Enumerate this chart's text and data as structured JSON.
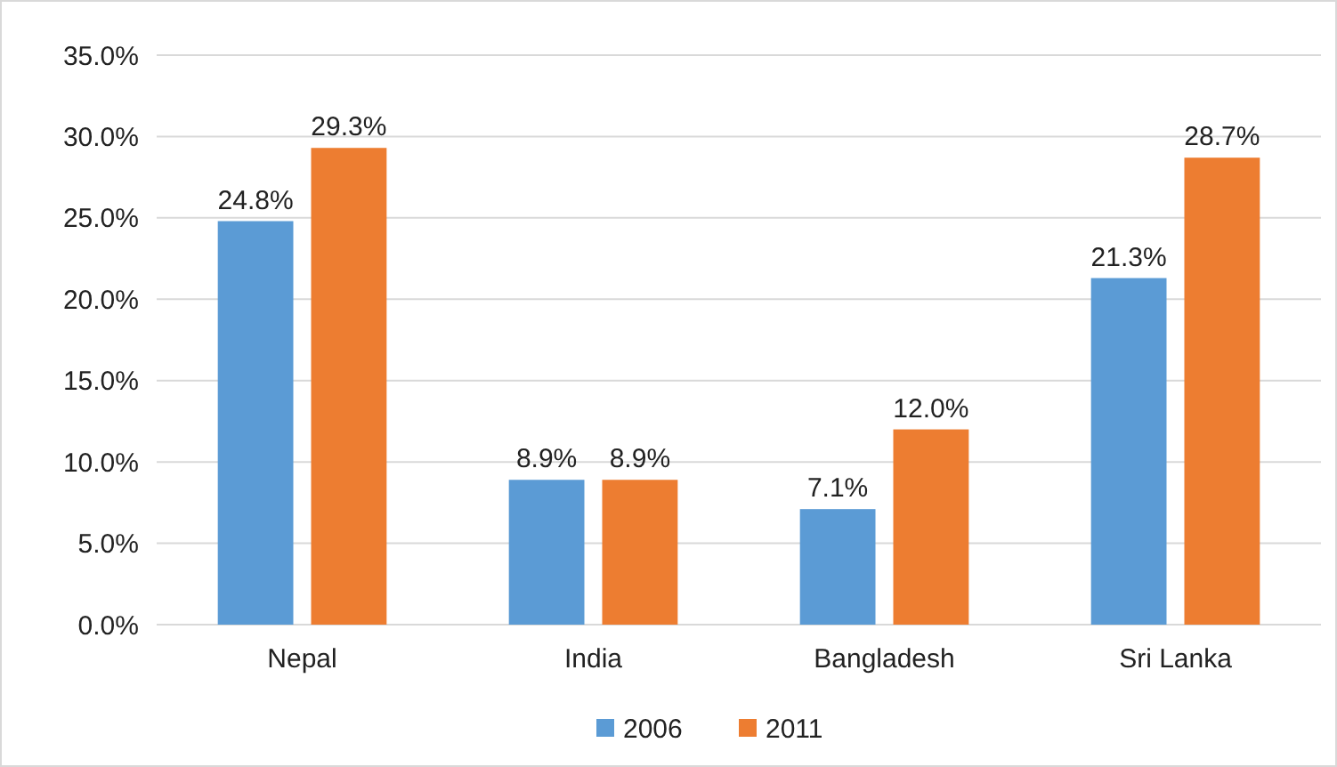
{
  "chart_data": {
    "type": "bar",
    "categories": [
      "Nepal",
      "India",
      "Bangladesh",
      "Sri Lanka"
    ],
    "series": [
      {
        "name": "2006",
        "color": "#5b9bd5",
        "values": [
          24.8,
          8.9,
          7.1,
          21.3
        ],
        "value_labels": [
          "24.8%",
          "8.9%",
          "7.1%",
          "21.3%"
        ]
      },
      {
        "name": "2011",
        "color": "#ed7d31",
        "values": [
          29.3,
          8.9,
          12.0,
          28.7
        ],
        "value_labels": [
          "29.3%",
          "8.9%",
          "12.0%",
          "28.7%"
        ]
      }
    ],
    "ylim": [
      0,
      35
    ],
    "yticks": [
      {
        "value": 0,
        "label": "0.0%"
      },
      {
        "value": 5,
        "label": "5.0%"
      },
      {
        "value": 10,
        "label": "10.0%"
      },
      {
        "value": 15,
        "label": "15.0%"
      },
      {
        "value": 20,
        "label": "20.0%"
      },
      {
        "value": 25,
        "label": "25.0%"
      },
      {
        "value": 30,
        "label": "30.0%"
      },
      {
        "value": 35,
        "label": "35.0%"
      }
    ],
    "grid": "y",
    "legend": "bottom"
  }
}
